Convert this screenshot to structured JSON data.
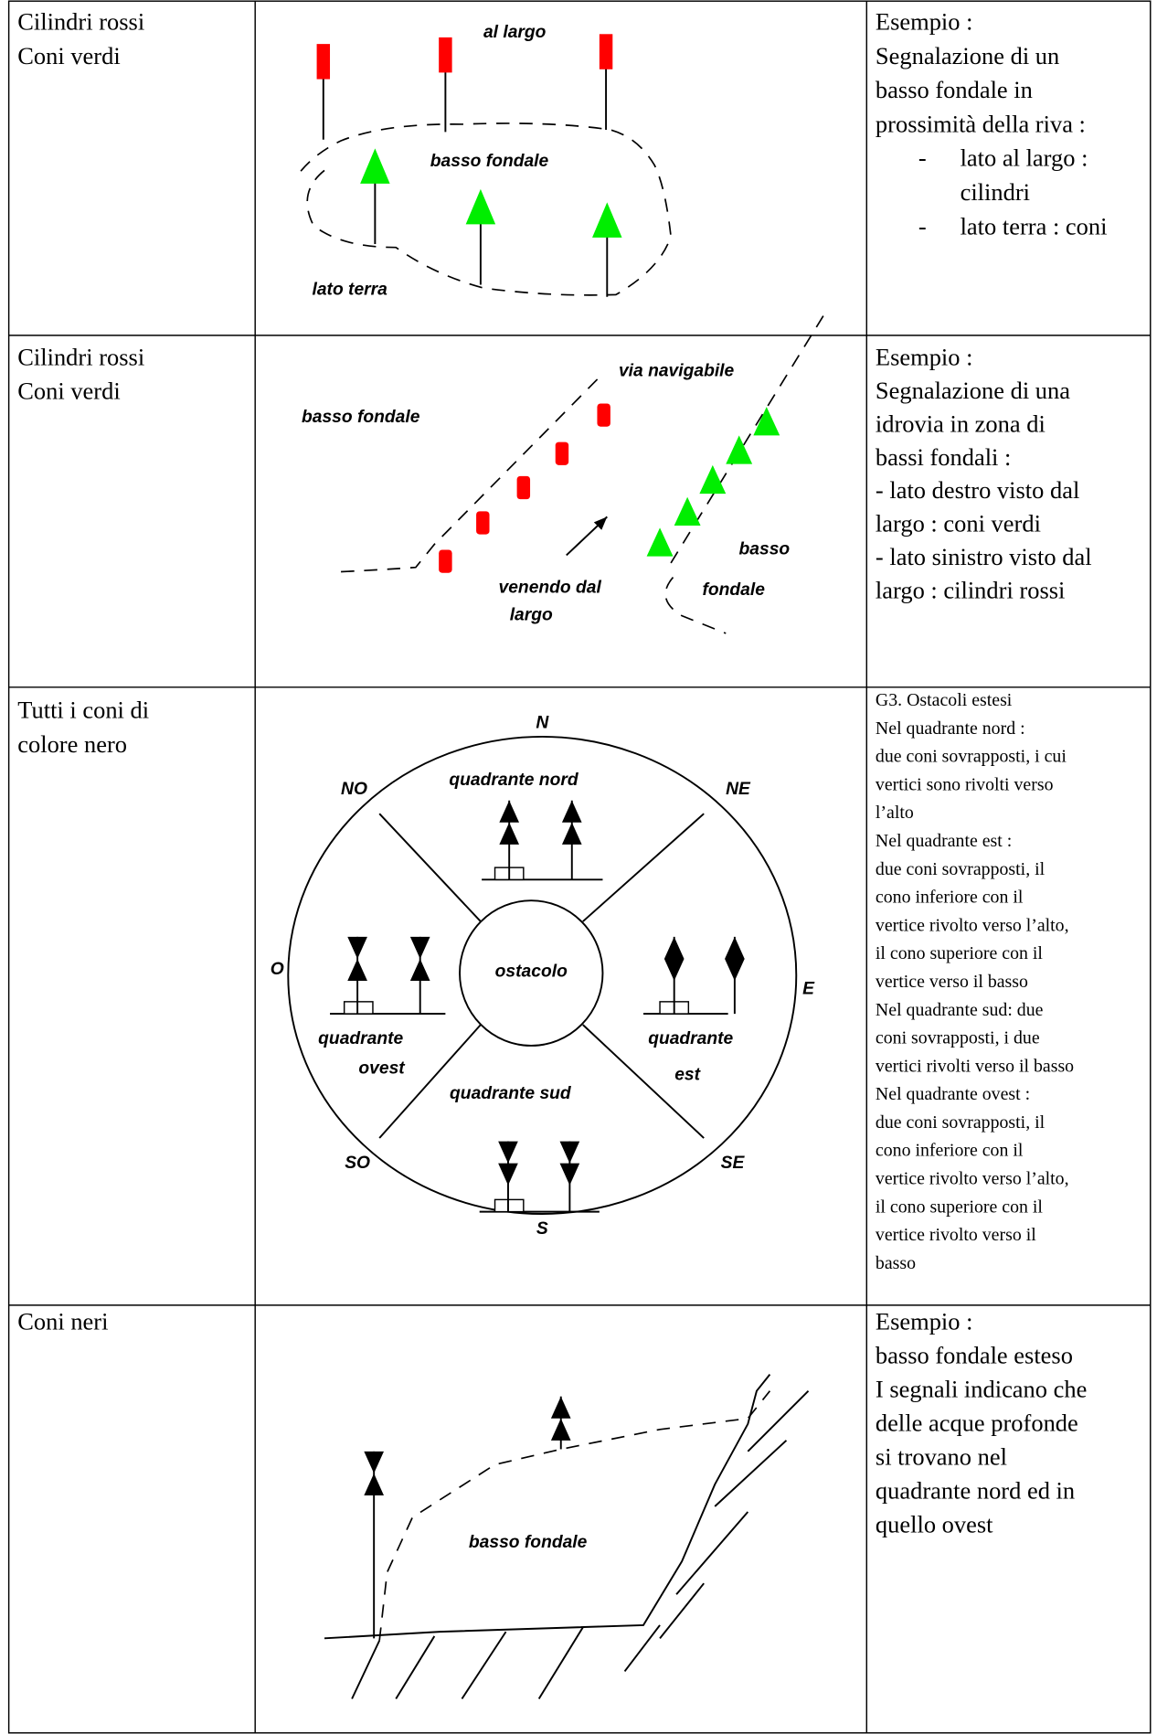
{
  "table": {
    "rows": [
      {
        "marker": [
          "Cilindri rossi",
          "Coni verdi"
        ],
        "diagram": [
          "al largo",
          "basso fondale",
          "lato terra"
        ],
        "description": [
          "Esempio :",
          "Segnalazione di un",
          "basso fondale in",
          "prossimità della riva :",
          {
            "bullet": "-",
            "text": "lato al largo :"
          },
          "cilindri",
          {
            "bullet": "-",
            "text": "lato terra : coni"
          }
        ]
      },
      {
        "marker": [
          "Cilindri rossi",
          "Coni verdi"
        ],
        "diagram": [
          "via navigabile",
          "basso fondale",
          "venendo dal",
          "largo",
          "basso",
          "fondale"
        ],
        "description": [
          "Esempio :",
          "Segnalazione di una",
          "idrovia in zona di",
          "bassi fondali :",
          "- lato destro visto dal",
          "largo : coni verdi",
          "- lato sinistro visto dal",
          "largo : cilindri rossi"
        ]
      },
      {
        "marker": [
          "Tutti i coni di",
          "colore nero"
        ],
        "diagram": [
          "N",
          "NO",
          "quadrante nord",
          "NE",
          "O",
          "ostacolo",
          "E",
          "quadrante",
          "ovest",
          "quadrante",
          "est",
          "quadrante sud",
          "SO",
          "SE",
          "S"
        ],
        "description": [
          "G3. Ostacoli estesi",
          "Nel quadrante nord :",
          "due coni sovrapposti, i cui",
          "vertici sono rivolti verso",
          "l’alto",
          "Nel quadrante est :",
          "due coni sovrapposti, il",
          "cono inferiore con il",
          "vertice rivolto verso l’alto,",
          "il cono superiore con il",
          "vertice verso il basso",
          "Nel quadrante sud: due",
          "coni sovrapposti, i due",
          "vertici rivolti verso il basso",
          "Nel quadrante ovest :",
          "due coni sovrapposti, il",
          "cono inferiore con il",
          "vertice rivolto verso l’alto,",
          "il cono superiore con il",
          "vertice rivolto verso il",
          "basso"
        ]
      },
      {
        "marker": [
          "Coni neri"
        ],
        "diagram": [
          "basso fondale"
        ],
        "description": [
          "Esempio :",
          "basso fondale esteso",
          "I segnali indicano che",
          "delle acque profonde",
          "si trovano nel",
          "quadrante nord ed in",
          "quello ovest"
        ]
      }
    ]
  }
}
